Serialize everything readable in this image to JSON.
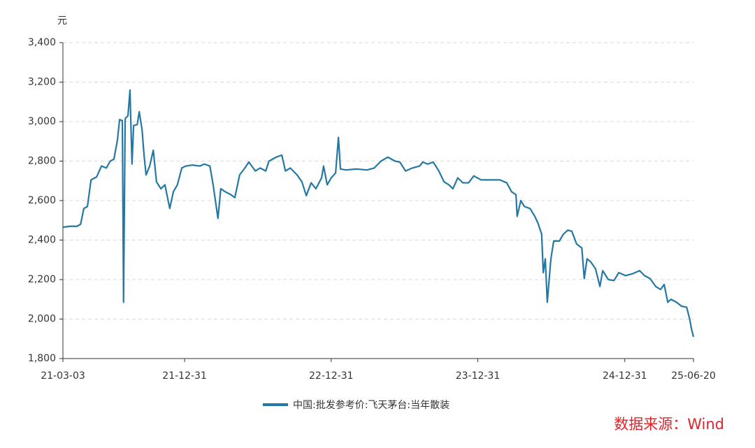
{
  "chart_data": {
    "type": "line",
    "y_unit": "元",
    "source": "数据来源：Wind",
    "xlim": [
      "21-03-03",
      "25-06-20"
    ],
    "xticks": [
      "21-03-03",
      "21-12-31",
      "22-12-31",
      "23-12-31",
      "24-12-31",
      "25-06-20"
    ],
    "ylim": [
      1800,
      3400
    ],
    "yticks": [
      {
        "value": 1800,
        "label": "1,800"
      },
      {
        "value": 2000,
        "label": "2,000"
      },
      {
        "value": 2200,
        "label": "2,200"
      },
      {
        "value": 2400,
        "label": "2,400"
      },
      {
        "value": 2600,
        "label": "2,600"
      },
      {
        "value": 2800,
        "label": "2,800"
      },
      {
        "value": 3000,
        "label": "3,000"
      },
      {
        "value": 3200,
        "label": "3,200"
      },
      {
        "value": 3400,
        "label": "3,400"
      }
    ],
    "grid": true,
    "legend": "bottom",
    "x": [
      "21-03-03",
      "21-03-20",
      "21-04-07",
      "21-04-16",
      "21-04-24",
      "21-05-03",
      "21-05-12",
      "21-05-26",
      "21-06-07",
      "21-06-19",
      "21-06-29",
      "21-07-08",
      "21-07-17",
      "21-07-22",
      "21-07-29",
      "21-08-01",
      "21-08-05",
      "21-08-12",
      "21-08-17",
      "21-08-22",
      "21-08-26",
      "21-09-04",
      "21-09-09",
      "21-09-16",
      "21-09-21",
      "21-09-26",
      "21-10-05",
      "21-10-14",
      "21-10-22",
      "21-11-02",
      "21-11-12",
      "21-11-24",
      "21-12-03",
      "21-12-13",
      "21-12-24",
      "22-01-03",
      "22-01-19",
      "22-02-07",
      "22-02-18",
      "22-03-04",
      "22-03-12",
      "22-03-24",
      "22-03-31",
      "22-04-11",
      "22-04-25",
      "22-05-05",
      "22-05-17",
      "22-05-30",
      "22-06-09",
      "22-06-25",
      "22-07-07",
      "22-07-21",
      "22-07-29",
      "22-08-16",
      "22-08-30",
      "22-09-08",
      "22-09-20",
      "22-10-07",
      "22-10-19",
      "22-10-30",
      "22-11-11",
      "22-11-23",
      "22-12-07",
      "22-12-12",
      "22-12-21",
      "22-12-31",
      "23-01-11",
      "23-01-18",
      "23-01-23",
      "23-02-06",
      "23-03-04",
      "23-03-30",
      "23-04-17",
      "23-05-04",
      "23-05-21",
      "23-06-08",
      "23-06-20",
      "23-07-04",
      "23-07-21",
      "23-08-08",
      "23-08-16",
      "23-08-28",
      "23-09-11",
      "23-09-25",
      "23-10-08",
      "23-10-20",
      "23-10-30",
      "23-11-11",
      "23-11-24",
      "23-12-08",
      "23-12-21",
      "24-01-08",
      "24-01-29",
      "24-02-24",
      "24-03-12",
      "24-03-24",
      "24-04-04",
      "24-04-07",
      "24-04-16",
      "24-04-25",
      "24-05-09",
      "24-05-21",
      "24-05-29",
      "24-06-07",
      "24-06-11",
      "24-06-16",
      "24-06-21",
      "24-06-30",
      "24-07-07",
      "24-07-21",
      "24-07-31",
      "24-08-11",
      "24-08-21",
      "24-09-02",
      "24-09-15",
      "24-09-21",
      "24-09-28",
      "24-10-07",
      "24-10-19",
      "24-10-30",
      "24-11-06",
      "24-11-20",
      "24-12-04",
      "24-12-16",
      "25-01-02",
      "25-01-20",
      "25-02-06",
      "25-02-18",
      "25-03-04",
      "25-03-18",
      "25-03-30",
      "25-04-08",
      "25-04-17",
      "25-04-25",
      "25-05-09",
      "25-05-21",
      "25-06-03",
      "25-06-10",
      "25-06-15",
      "25-06-20"
    ],
    "series": [
      {
        "name": "中国:批发参考价:飞天茅台:当年散装",
        "color": "#2478a3",
        "values": [
          2465,
          2470,
          2470,
          2480,
          2560,
          2570,
          2705,
          2720,
          2775,
          2765,
          2800,
          2810,
          2910,
          3010,
          3005,
          2085,
          3015,
          3030,
          3160,
          2785,
          2980,
          2985,
          3050,
          2960,
          2830,
          2730,
          2775,
          2855,
          2695,
          2660,
          2680,
          2560,
          2645,
          2680,
          2765,
          2775,
          2780,
          2775,
          2785,
          2775,
          2680,
          2510,
          2660,
          2645,
          2630,
          2615,
          2730,
          2765,
          2795,
          2750,
          2765,
          2750,
          2800,
          2820,
          2830,
          2750,
          2765,
          2730,
          2695,
          2625,
          2690,
          2660,
          2715,
          2775,
          2680,
          2715,
          2740,
          2920,
          2760,
          2755,
          2760,
          2755,
          2765,
          2800,
          2820,
          2800,
          2795,
          2750,
          2765,
          2775,
          2795,
          2785,
          2795,
          2750,
          2695,
          2680,
          2660,
          2715,
          2690,
          2690,
          2725,
          2705,
          2705,
          2705,
          2690,
          2645,
          2630,
          2520,
          2600,
          2570,
          2560,
          2520,
          2485,
          2430,
          2235,
          2305,
          2085,
          2305,
          2395,
          2395,
          2430,
          2450,
          2445,
          2380,
          2360,
          2205,
          2305,
          2290,
          2255,
          2165,
          2245,
          2200,
          2195,
          2235,
          2220,
          2230,
          2245,
          2220,
          2205,
          2165,
          2150,
          2175,
          2085,
          2100,
          2085,
          2065,
          2060,
          2005,
          1950,
          1910
        ]
      }
    ]
  }
}
